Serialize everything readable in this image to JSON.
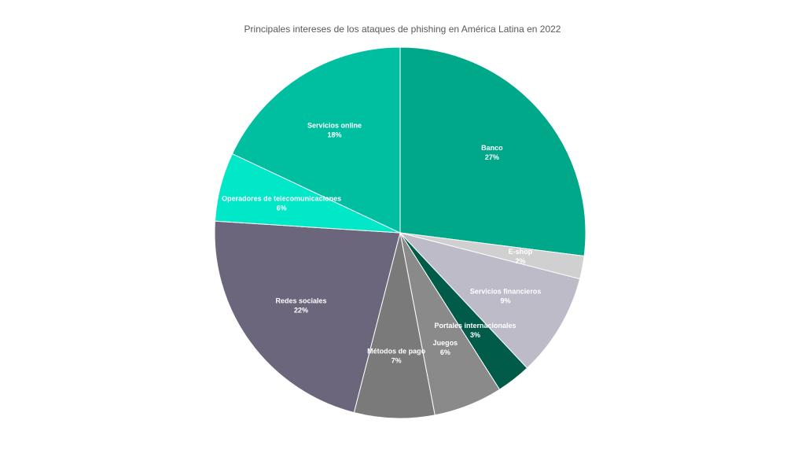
{
  "chart_data": {
    "type": "pie",
    "title": "Principales intereses de los ataques de phishing en América Latina en 2022",
    "categories": [
      "Banco",
      "E-shop",
      "Servicios financieros",
      "Portales internacionales",
      "Juegos",
      "Métodos de pago",
      "Redes sociales",
      "Operadores de telecomunicaciones",
      "Servicios online"
    ],
    "values": [
      27,
      2,
      9,
      3,
      6,
      7,
      22,
      6,
      18
    ],
    "value_labels": [
      "27%",
      "2%",
      "9%",
      "3%",
      "6%",
      "7%",
      "22%",
      "6%",
      "18%"
    ],
    "colors": [
      "#00A88A",
      "#D0D0D0",
      "#BEBBC9",
      "#005C48",
      "#8A8A8A",
      "#7A7A7A",
      "#6B667C",
      "#00E8C8",
      "#00BFA0"
    ],
    "legend": "none"
  }
}
